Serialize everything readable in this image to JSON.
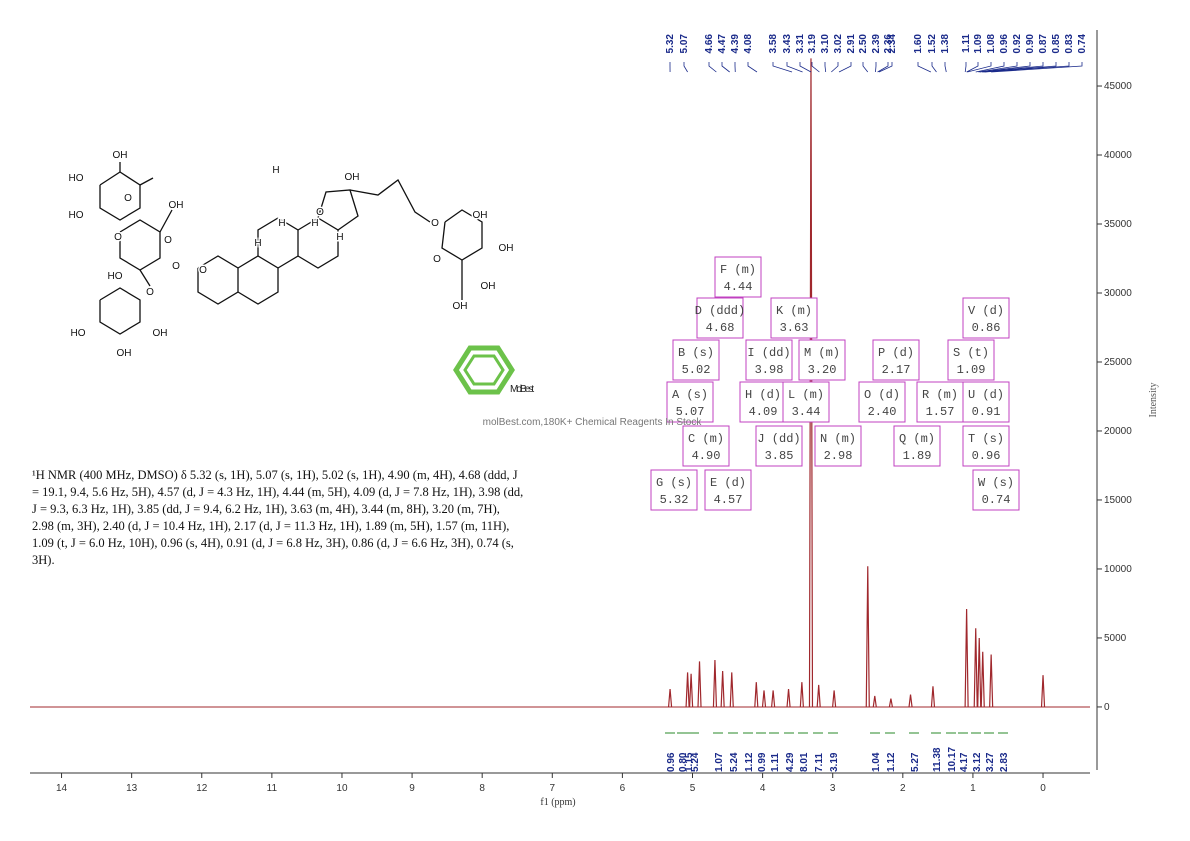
{
  "chart_data": {
    "type": "nmr",
    "x_label": "f1 (ppm)",
    "y_label": "Intensity",
    "xlim": [
      14.45,
      -0.67
    ],
    "xticks": [
      14,
      13,
      12,
      11,
      10,
      9,
      8,
      7,
      6,
      5,
      4,
      3,
      2,
      1,
      0
    ],
    "ylim": [
      -4570,
      49060
    ],
    "yticks": [
      0,
      5000,
      10000,
      15000,
      20000,
      25000,
      30000,
      35000,
      40000,
      45000
    ],
    "peaks": {
      "x": [
        5.32,
        5.07,
        5.02,
        4.9,
        4.68,
        4.57,
        4.44,
        4.09,
        3.98,
        3.85,
        3.63,
        3.44,
        3.31,
        3.2,
        2.98,
        2.5,
        2.4,
        2.17,
        1.89,
        1.57,
        1.09,
        0.96,
        0.91,
        0.86,
        0.74,
        0
      ],
      "values": [
        1300,
        2500,
        2400,
        3300,
        3400,
        2600,
        2500,
        1800,
        1200,
        1200,
        1300,
        1800,
        47000,
        1600,
        1200,
        10200,
        800,
        600,
        900,
        1500,
        7100,
        5700,
        5000,
        4000,
        3800,
        2300
      ],
      "color": "#a0282d"
    },
    "peak_labels": [
      5.32,
      5.07,
      4.66,
      4.47,
      4.39,
      4.08,
      3.58,
      3.43,
      3.31,
      3.19,
      {
        "value": 3.1,
        "label": "3.10"
      },
      3.02,
      2.91,
      {
        "value": 2.5,
        "label": "2.50"
      },
      2.39,
      2.36,
      2.34,
      {
        "value": 1.6,
        "label": "1.60"
      },
      1.52,
      1.38,
      1.11,
      1.09,
      1.08,
      0.96,
      0.92,
      {
        "value": 0.9,
        "label": "0.90"
      },
      0.87,
      0.85,
      0.83,
      0.74
    ],
    "multiplets": [
      [
        "A (s)",
        "5.07"
      ],
      [
        "B (s)",
        "5.02"
      ],
      [
        "C (m)",
        "4.90"
      ],
      [
        "D (ddd)",
        "4.68"
      ],
      [
        "E (d)",
        "4.57"
      ],
      [
        "F (m)",
        "4.44"
      ],
      [
        "G (s)",
        "5.32"
      ],
      [
        "H (d)",
        "4.09"
      ],
      [
        "I (dd)",
        "3.98"
      ],
      [
        "J (dd)",
        "3.85"
      ],
      [
        "K (m)",
        "3.63"
      ],
      [
        "L (m)",
        "3.44"
      ],
      [
        "M (m)",
        "3.20"
      ],
      [
        "N (m)",
        "2.98"
      ],
      [
        "O (d)",
        "2.40"
      ],
      [
        "P (d)",
        "2.17"
      ],
      [
        "Q (m)",
        "1.89"
      ],
      [
        "R (m)",
        "1.57"
      ],
      [
        "S (t)",
        "1.09"
      ],
      [
        "T (s)",
        "0.96"
      ],
      [
        "U (d)",
        "0.91"
      ],
      [
        "V (d)",
        "0.86"
      ],
      [
        "W (s)",
        "0.74"
      ]
    ],
    "integrals": [
      "0.96",
      "0.80",
      "1.15",
      "5.24",
      "1.07",
      "5.24",
      "1.12",
      "0.99",
      "1.11",
      "4.29",
      "8.01",
      "7.11",
      "3.19",
      "1.04",
      "1.12",
      "5.27",
      "11.38",
      "10.17",
      "4.17",
      "3.12",
      "3.27",
      "2.83"
    ]
  },
  "description": "¹H NMR (400 MHz, DMSO) δ 5.32 (s, 1H), 5.07 (s, 1H), 5.02 (s, 1H), 4.90 (m, 4H), 4.68 (ddd, J = 19.1, 9.4, 5.6 Hz, 5H), 4.57 (d, J = 4.3 Hz, 1H), 4.44 (m, 5H), 4.09 (d, J = 7.8 Hz, 1H), 3.98 (dd, J = 9.3, 6.3 Hz, 1H), 3.85 (dd, J = 9.4, 6.2 Hz, 1H), 3.63 (m, 4H), 3.44 (m, 8H), 3.20 (m, 7H), 2.98 (m, 3H), 2.40 (d, J = 10.4 Hz, 1H), 2.17 (d, J = 11.3 Hz, 1H), 1.89 (m, 5H), 1.57 (m, 11H), 1.09 (t, J = 6.0 Hz, 10H), 0.96 (s, 4H), 0.91 (d, J = 6.8 Hz, 3H), 0.86 (d, J = 6.6 Hz, 3H), 0.74 (s, 3H).",
  "structure": {
    "labels": [
      "OH",
      "HO",
      "HO",
      "O",
      "OH",
      "O",
      "O",
      "HO",
      "O",
      "O",
      "O",
      "HO",
      "OH",
      "OH",
      "H",
      "H",
      "H",
      "H",
      "H",
      "OH",
      "O",
      "O",
      "O",
      "OH",
      "OH",
      "OH",
      "OH"
    ]
  },
  "logo": {
    "name": "MolBest",
    "tagline": "molBest.com,180K+ Chemical Reagents In Stock"
  }
}
